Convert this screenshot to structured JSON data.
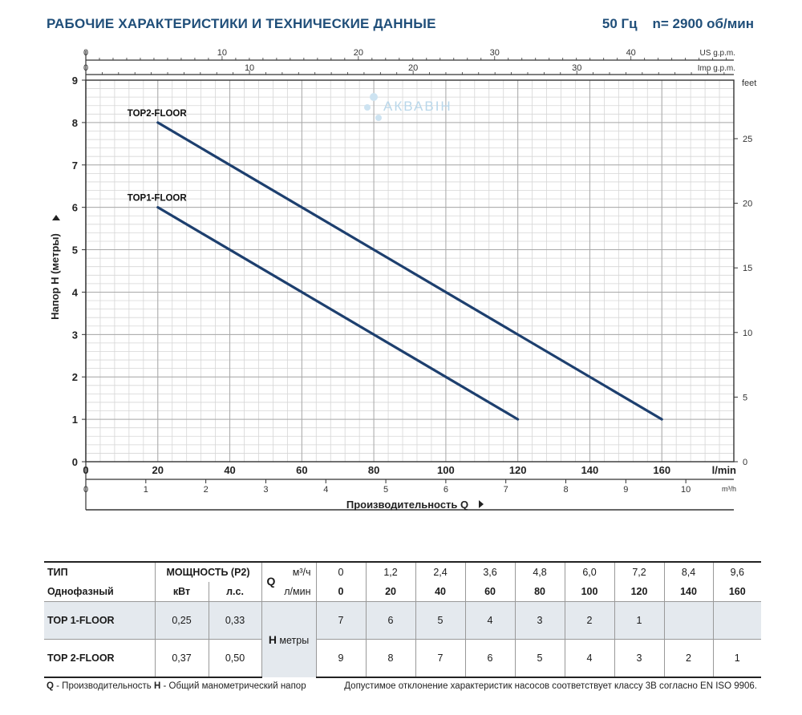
{
  "header": {
    "title": "РАБОЧИЕ ХАРАКТЕРИСТИКИ И ТЕХНИЧЕСКИЕ ДАННЫЕ",
    "freq": "50 Гц",
    "speed": "n= 2900 об/мин"
  },
  "watermark": "АКВАВІН",
  "chart_data": {
    "type": "line",
    "xlabel": "Производительность Q",
    "ylabel": "Напор H (метры)",
    "x_unit_main": "l/min",
    "x_unit_m3h": "m³/h",
    "x_unit_us": "US g.p.m.",
    "x_unit_imp": "Imp g.p.m.",
    "y2_unit": "feet",
    "xlim": [
      0,
      180
    ],
    "ylim": [
      0,
      9
    ],
    "x_ticks": [
      0,
      20,
      40,
      60,
      80,
      100,
      120,
      140,
      160
    ],
    "y_ticks": [
      0,
      1,
      2,
      3,
      4,
      5,
      6,
      7,
      8,
      9
    ],
    "m3h_ticks": [
      0,
      1,
      2,
      3,
      4,
      5,
      6,
      7,
      8,
      9,
      10
    ],
    "us_gpm_ticks": [
      0,
      10,
      20,
      30,
      40
    ],
    "imp_gpm_ticks": [
      0,
      10,
      20,
      30
    ],
    "feet_ticks": [
      0,
      5,
      10,
      15,
      20,
      25
    ],
    "series": [
      {
        "name": "TOP1-FLOOR",
        "x": [
          20,
          120
        ],
        "y": [
          6,
          1
        ],
        "color": "#1d3f6e"
      },
      {
        "name": "TOP2-FLOOR",
        "x": [
          20,
          160
        ],
        "y": [
          8,
          1
        ],
        "color": "#1d3f6e"
      }
    ]
  },
  "table": {
    "type_label": "ТИП",
    "phase_label": "Однофазный",
    "power_label": "МОЩНОСТЬ (P2)",
    "kw_label": "кВт",
    "hp_label": "л.с.",
    "q_label": "Q",
    "m3h_label": "м³/ч",
    "lmin_label": "л/мин",
    "m3h_values": [
      "0",
      "1,2",
      "2,4",
      "3,6",
      "4,8",
      "6,0",
      "7,2",
      "8,4",
      "9,6"
    ],
    "lmin_values": [
      "0",
      "20",
      "40",
      "60",
      "80",
      "100",
      "120",
      "140",
      "160"
    ],
    "h_label": "H",
    "h_unit": "метры",
    "rows": [
      {
        "model": "TOP 1-FLOOR",
        "kw": "0,25",
        "hp": "0,33",
        "heads": [
          "7",
          "6",
          "5",
          "4",
          "3",
          "2",
          "1",
          "",
          ""
        ]
      },
      {
        "model": "TOP 2-FLOOR",
        "kw": "0,37",
        "hp": "0,50",
        "heads": [
          "9",
          "8",
          "7",
          "6",
          "5",
          "4",
          "3",
          "2",
          "1"
        ]
      }
    ]
  },
  "footer": {
    "q_abbr": "Q",
    "q_desc": " - Производительность ",
    "h_abbr": "H",
    "h_desc": " - Общий манометрический напор",
    "note": "Допустимое отклонение характеристик насосов соответствует классу 3В согласно EN ISO 9906."
  }
}
